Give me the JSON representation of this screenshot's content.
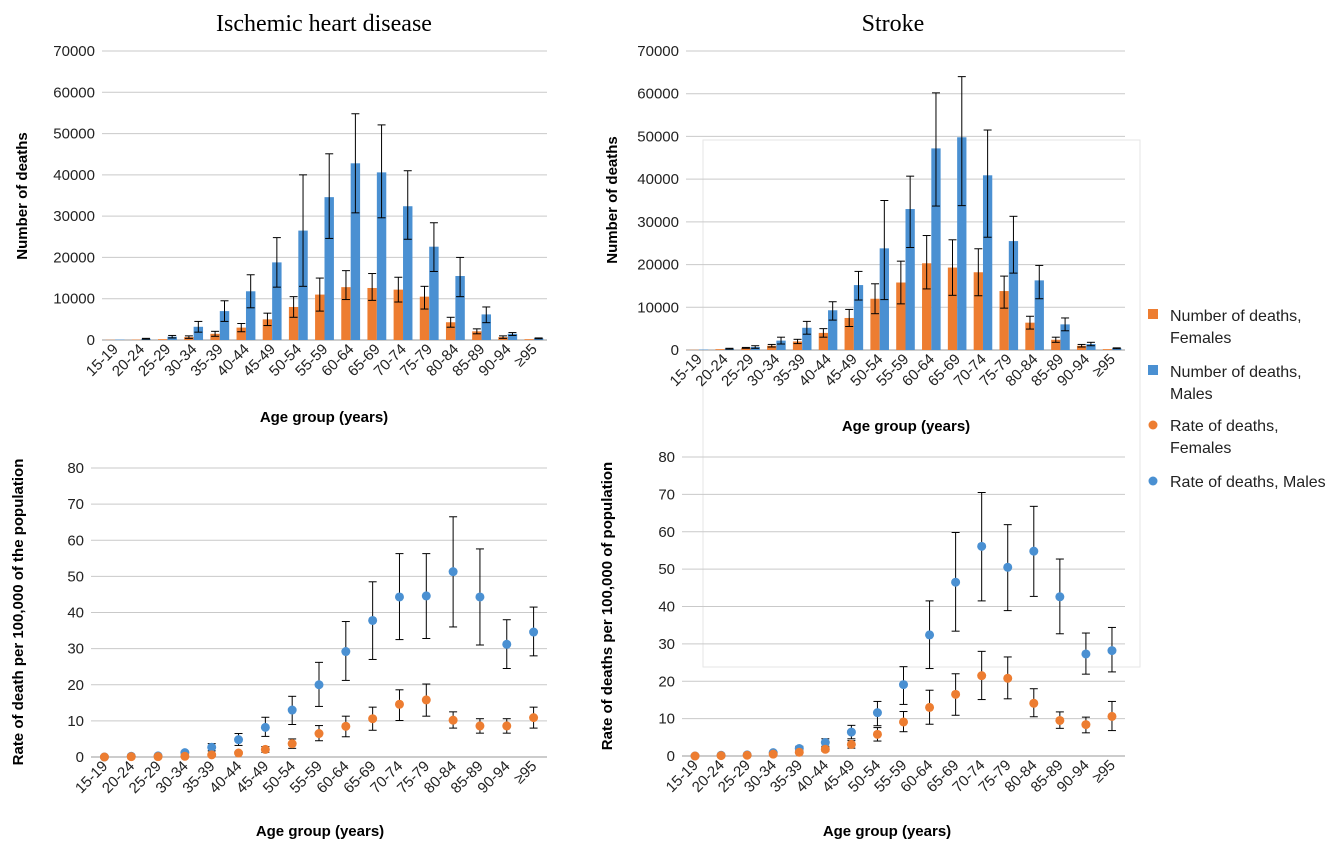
{
  "legend": {
    "items": [
      {
        "label_line1": "Number of deaths,",
        "label_line2": "Females",
        "color": "#ED7D31",
        "marker": "square"
      },
      {
        "label_line1": "Number of deaths,",
        "label_line2": "Males",
        "color": "#4A90D2",
        "marker": "square"
      },
      {
        "label_line1": "Rate of deaths,",
        "label_line2": "Females",
        "color": "#ED7D31",
        "marker": "circle"
      },
      {
        "label_line1": "Rate of deaths, Males",
        "label_line2": "",
        "color": "#4A90D2",
        "marker": "circle"
      }
    ]
  },
  "chart_data": [
    {
      "id": "ihd-counts",
      "type": "bar",
      "title": "Ischemic heart disease",
      "xlabel": "Age group (years)",
      "ylabel": "Number of deaths",
      "ylim": [
        0,
        70000
      ],
      "yticks": [
        0,
        10000,
        20000,
        30000,
        40000,
        50000,
        60000,
        70000
      ],
      "grid": true,
      "categories": [
        "15-19",
        "20-24",
        "25-29",
        "30-34",
        "35-39",
        "40-44",
        "45-49",
        "50-54",
        "55-59",
        "60-64",
        "65-69",
        "70-74",
        "75-79",
        "80-84",
        "85-89",
        "90-94",
        "≥95"
      ],
      "series": [
        {
          "name": "Number of deaths, Females",
          "color": "#ED7D31",
          "values": [
            50,
            100,
            200,
            700,
            1500,
            3000,
            5000,
            8000,
            11000,
            12800,
            12600,
            12200,
            10500,
            4300,
            2100,
            700,
            200
          ],
          "err_low": [
            0,
            0,
            0,
            300,
            600,
            1000,
            1500,
            2500,
            4000,
            3000,
            3000,
            3000,
            3000,
            1200,
            600,
            300,
            0
          ],
          "err_high": [
            0,
            0,
            0,
            300,
            600,
            1000,
            1500,
            2500,
            4000,
            4000,
            3500,
            3000,
            2500,
            1200,
            600,
            300,
            0
          ]
        },
        {
          "name": "Number of deaths, Males",
          "color": "#4A90D2",
          "values": [
            100,
            300,
            800,
            3200,
            7000,
            11800,
            18800,
            26500,
            34600,
            42800,
            40600,
            32400,
            22600,
            15500,
            6200,
            1500,
            400
          ],
          "err_low": [
            0,
            100,
            300,
            1300,
            2500,
            4000,
            6000,
            13500,
            10000,
            12000,
            11000,
            8000,
            6000,
            5000,
            2000,
            400,
            100
          ],
          "err_high": [
            0,
            100,
            300,
            1300,
            2500,
            4000,
            6000,
            13500,
            10500,
            12000,
            11500,
            8600,
            5800,
            4500,
            1800,
            300,
            100
          ]
        }
      ]
    },
    {
      "id": "stroke-counts",
      "type": "bar",
      "title": "Stroke",
      "xlabel": "Age group (years)",
      "ylabel": "Number of deaths",
      "ylim": [
        0,
        70000
      ],
      "yticks": [
        0,
        10000,
        20000,
        30000,
        40000,
        50000,
        60000,
        70000
      ],
      "grid": true,
      "categories": [
        "15-19",
        "20-24",
        "25-29",
        "30-34",
        "35-39",
        "40-44",
        "45-49",
        "50-54",
        "55-59",
        "60-64",
        "65-69",
        "70-74",
        "75-79",
        "80-84",
        "85-89",
        "90-94",
        "≥95"
      ],
      "series": [
        {
          "name": "Number of deaths, Females",
          "color": "#ED7D31",
          "values": [
            50,
            200,
            500,
            1000,
            2000,
            4000,
            7500,
            12000,
            15800,
            20300,
            19300,
            18200,
            13800,
            6400,
            2400,
            1000,
            200
          ],
          "err_low": [
            0,
            0,
            100,
            300,
            500,
            1000,
            2000,
            3500,
            5000,
            6000,
            6500,
            5500,
            4000,
            1500,
            600,
            300,
            0
          ],
          "err_high": [
            0,
            0,
            100,
            300,
            500,
            1000,
            2000,
            3500,
            5000,
            6500,
            6500,
            5500,
            3500,
            1500,
            600,
            300,
            0
          ]
        },
        {
          "name": "Number of deaths, Males",
          "color": "#4A90D2",
          "values": [
            100,
            300,
            700,
            2200,
            5200,
            9300,
            15200,
            23800,
            33000,
            47200,
            49800,
            40900,
            25500,
            16300,
            6000,
            1400,
            400
          ],
          "err_low": [
            0,
            100,
            300,
            800,
            1500,
            2300,
            3500,
            12000,
            9000,
            13500,
            16000,
            14500,
            7500,
            4300,
            1500,
            400,
            100
          ],
          "err_high": [
            0,
            100,
            300,
            800,
            1500,
            2000,
            3200,
            11200,
            7700,
            13000,
            14200,
            10600,
            5800,
            3500,
            1500,
            400,
            100
          ]
        }
      ]
    },
    {
      "id": "ihd-rates",
      "type": "scatter",
      "title": "",
      "xlabel": "Age group (years)",
      "ylabel": "Rate of death per 100,000 of the population",
      "ylim": [
        0,
        80
      ],
      "yticks": [
        0,
        10,
        20,
        30,
        40,
        50,
        60,
        70,
        80
      ],
      "grid": true,
      "categories": [
        "15-19",
        "20-24",
        "25-29",
        "30-34",
        "35-39",
        "40-44",
        "45-49",
        "50-54",
        "55-59",
        "60-64",
        "65-69",
        "70-74",
        "75-79",
        "80-84",
        "85-89",
        "90-94",
        "≥95"
      ],
      "series": [
        {
          "name": "Rate of deaths, Males",
          "color": "#4A90D2",
          "values": [
            0,
            0.2,
            0.3,
            1.2,
            2.7,
            4.8,
            8.2,
            13,
            20,
            29.2,
            37.8,
            44.3,
            44.6,
            51.3,
            44.3,
            31.2,
            34.6
          ],
          "err_low": [
            0,
            0,
            0,
            0.4,
            1.0,
            1.6,
            2.5,
            4.0,
            6.0,
            8.0,
            10.8,
            11.8,
            11.8,
            15.3,
            13.3,
            6.7,
            6.6
          ],
          "err_high": [
            0,
            0,
            0,
            0.4,
            1.0,
            1.7,
            2.8,
            3.8,
            6.2,
            8.3,
            10.7,
            12.0,
            11.7,
            15.2,
            13.3,
            6.8,
            6.9
          ]
        },
        {
          "name": "Rate of deaths, Females",
          "color": "#ED7D31",
          "values": [
            0,
            0.1,
            0.1,
            0.2,
            0.6,
            1.1,
            2.1,
            3.7,
            6.5,
            8.5,
            10.6,
            14.6,
            15.8,
            10.2,
            8.6,
            8.6,
            10.9
          ],
          "err_low": [
            0,
            0,
            0,
            0,
            0.3,
            0.4,
            0.8,
            1.3,
            2.0,
            2.9,
            3.2,
            4.5,
            4.5,
            2.2,
            2.0,
            2.0,
            2.9
          ],
          "err_high": [
            0,
            0,
            0,
            0,
            0.3,
            0.4,
            0.8,
            1.3,
            2.2,
            2.8,
            3.2,
            4.0,
            4.4,
            2.3,
            2.0,
            2.0,
            2.9
          ]
        }
      ]
    },
    {
      "id": "stroke-rates",
      "type": "scatter",
      "title": "",
      "xlabel": "Age group (years)",
      "ylabel": "Rate of deaths per 100,000 of population",
      "ylim": [
        0,
        80
      ],
      "yticks": [
        0,
        10,
        20,
        30,
        40,
        50,
        60,
        70,
        80
      ],
      "grid": true,
      "categories": [
        "15-19",
        "20-24",
        "25-29",
        "30-34",
        "35-39",
        "40-44",
        "45-49",
        "50-54",
        "55-59",
        "60-64",
        "65-69",
        "70-74",
        "75-79",
        "80-84",
        "85-89",
        "90-94",
        "≥95"
      ],
      "series": [
        {
          "name": "Rate of deaths, Males",
          "color": "#4A90D2",
          "values": [
            0,
            0.2,
            0.3,
            0.9,
            2.0,
            3.6,
            6.4,
            11.6,
            19.1,
            32.4,
            46.5,
            56.1,
            50.5,
            54.8,
            42.6,
            27.3,
            28.2
          ],
          "err_low": [
            0,
            0,
            0,
            0.3,
            0.6,
            1.0,
            1.8,
            3.5,
            5.3,
            9.0,
            13.1,
            14.6,
            11.6,
            12.1,
            9.9,
            5.4,
            5.7
          ],
          "err_high": [
            0,
            0,
            0,
            0.3,
            0.6,
            1.0,
            1.8,
            3.0,
            4.8,
            9.1,
            13.3,
            14.4,
            11.4,
            12.0,
            10.1,
            5.6,
            6.2
          ]
        },
        {
          "name": "Rate of deaths, Females",
          "color": "#ED7D31",
          "values": [
            0,
            0.1,
            0.2,
            0.5,
            1.0,
            1.8,
            3.1,
            5.8,
            9.1,
            13.0,
            16.5,
            21.5,
            20.8,
            14.1,
            9.5,
            8.4,
            10.6
          ],
          "err_low": [
            0,
            0,
            0,
            0.2,
            0.3,
            0.5,
            1.0,
            1.8,
            2.6,
            4.5,
            5.6,
            6.4,
            5.5,
            3.6,
            2.1,
            2.2,
            3.8
          ],
          "err_high": [
            0,
            0,
            0,
            0.2,
            0.3,
            0.5,
            1.0,
            1.8,
            2.8,
            4.6,
            5.5,
            6.5,
            5.7,
            3.9,
            2.3,
            2.0,
            4.0
          ]
        }
      ]
    }
  ]
}
